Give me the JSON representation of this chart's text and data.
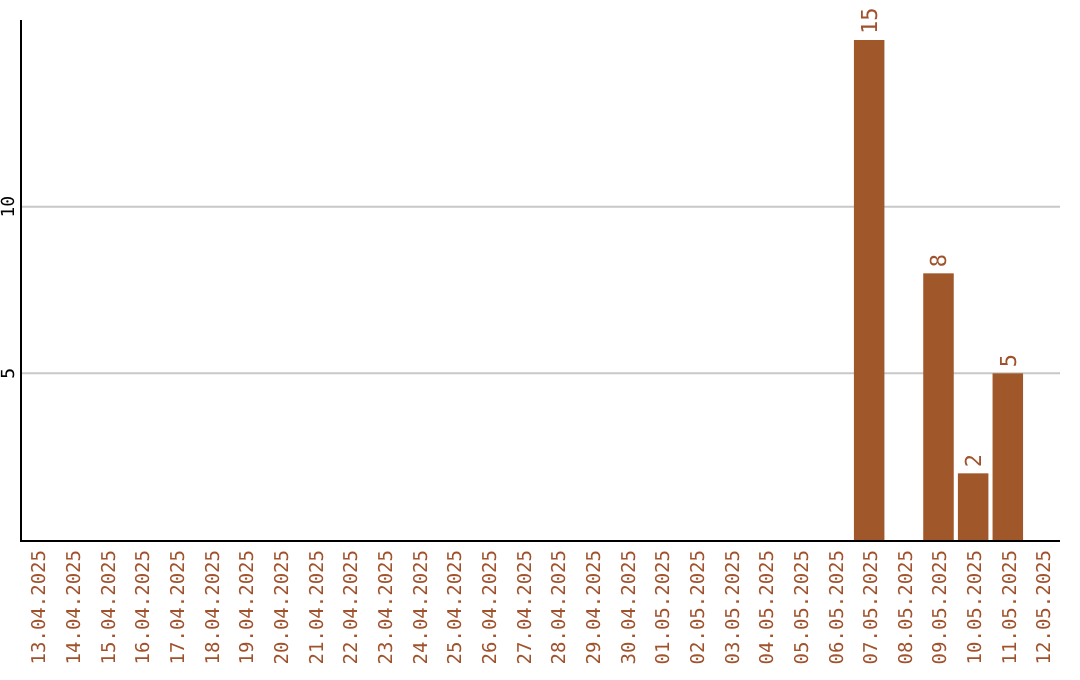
{
  "chart_data": {
    "type": "bar",
    "categories": [
      "13.04.2025",
      "14.04.2025",
      "15.04.2025",
      "16.04.2025",
      "17.04.2025",
      "18.04.2025",
      "19.04.2025",
      "20.04.2025",
      "21.04.2025",
      "22.04.2025",
      "23.04.2025",
      "24.04.2025",
      "25.04.2025",
      "26.04.2025",
      "27.04.2025",
      "28.04.2025",
      "29.04.2025",
      "30.04.2025",
      "01.05.2025",
      "02.05.2025",
      "03.05.2025",
      "04.05.2025",
      "05.05.2025",
      "06.05.2025",
      "07.05.2025",
      "08.05.2025",
      "09.05.2025",
      "10.05.2025",
      "11.05.2025",
      "12.05.2025"
    ],
    "values": [
      null,
      null,
      null,
      null,
      null,
      null,
      null,
      null,
      null,
      null,
      null,
      null,
      null,
      null,
      null,
      null,
      null,
      null,
      null,
      null,
      null,
      null,
      null,
      null,
      15,
      null,
      8,
      2,
      5,
      null
    ],
    "color": "#a0582a",
    "ylim": [
      0,
      15.6
    ],
    "yticks": [
      5,
      10
    ],
    "grid": "y",
    "data_labels": true
  }
}
